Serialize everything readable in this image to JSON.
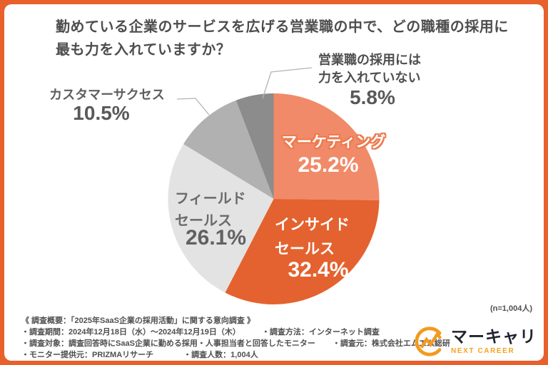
{
  "title": {
    "line1": "勤めている企業のサービスを広げる営業職の中で、どの職種の採用に",
    "line2": "最も力を入れていますか？"
  },
  "chart_data": {
    "type": "pie",
    "title": "勤めている企業のサービスを広げる営業職の中で、どの職種の採用に最も力を入れていますか？",
    "sample_note": "(n=1,004人)",
    "unit": "%",
    "start_angle": "12-oclock, clockwise",
    "slices": [
      {
        "label": "マーケティング",
        "value": 25.2,
        "color": "#F18A68"
      },
      {
        "label": "インサイドセールス",
        "value": 32.4,
        "color": "#E4622F"
      },
      {
        "label": "フィールドセールス",
        "value": 26.1,
        "color": "#E3E3E3"
      },
      {
        "label": "カスタマーサクセス",
        "value": 10.5,
        "color": "#B1B1B1"
      },
      {
        "label": "営業職の採用には力を入れていない",
        "value": 5.8,
        "color": "#8C8C8C"
      }
    ]
  },
  "labels": {
    "marketing": {
      "name": "マーケティング",
      "pct": "25.2%"
    },
    "inside": {
      "line1": "インサイド",
      "line2": "セールス",
      "pct": "32.4%"
    },
    "field": {
      "line1": "フィールド",
      "line2": "セールス",
      "pct": "26.1%"
    },
    "cs": {
      "name": "カスタマーサクセス",
      "pct": "10.5%"
    },
    "none": {
      "line1": "営業職の採用には",
      "line2": "力を入れていない",
      "pct": "5.8%"
    }
  },
  "note": "(n=1,004人)",
  "footer": {
    "line1": "《 調査概要：「2025年SaaS企業の採用活動」に関する意向調査 》",
    "period": "・調査期間：2024年12月18日（水）～2024年12月19日（木）",
    "method": "・調査方法：インターネット調査",
    "target": "・調査対象：調査回答時にSaaS企業に勤める採用・人事担当者と回答したモニター",
    "source": "・調査元：株式会社エムエム総研",
    "monitor": "・モニター提供元：PRIZMAリサーチ",
    "count": "・調査人数：1,004人"
  },
  "logo": {
    "brand": "マーキャリ",
    "sub": "NEXT CAREER"
  },
  "colors": {
    "frame": "#E8602C",
    "logo_orange": "#F5A21B",
    "marketing_outline": "#ED7A4E",
    "leader_line": "#B3B3B3",
    "title_text": "#4D4D4D"
  }
}
